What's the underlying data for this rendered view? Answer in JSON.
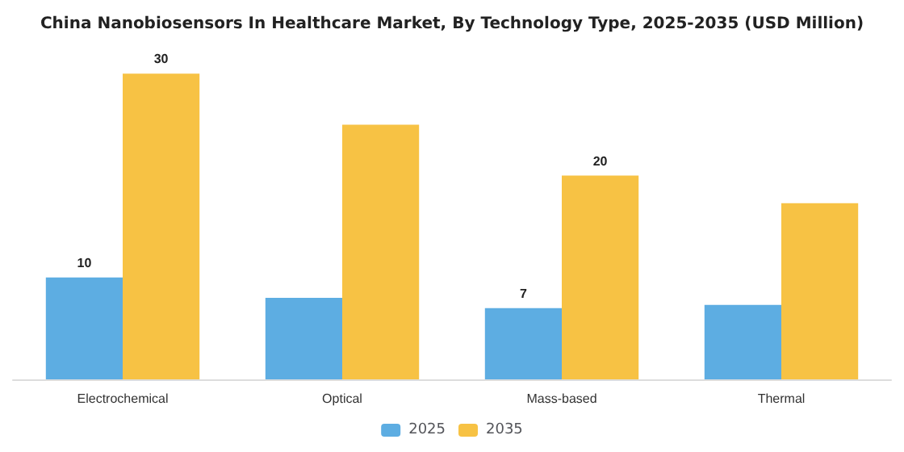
{
  "chart_data": {
    "type": "bar",
    "title": "China Nanobiosensors In Healthcare Market, By Technology Type, 2025-2035 (USD Million)",
    "categories": [
      "Electrochemical",
      "Optical",
      "Mass-based",
      "Thermal"
    ],
    "series": [
      {
        "name": "2025",
        "color": "#5dade2",
        "values": [
          10,
          8,
          7,
          7.3
        ],
        "value_labels": [
          "10",
          null,
          "7",
          null
        ]
      },
      {
        "name": "2035",
        "color": "#f7c244",
        "values": [
          30,
          25,
          20,
          17.3
        ],
        "value_labels": [
          "30",
          null,
          "20",
          null
        ]
      }
    ],
    "legend": "bottom"
  }
}
